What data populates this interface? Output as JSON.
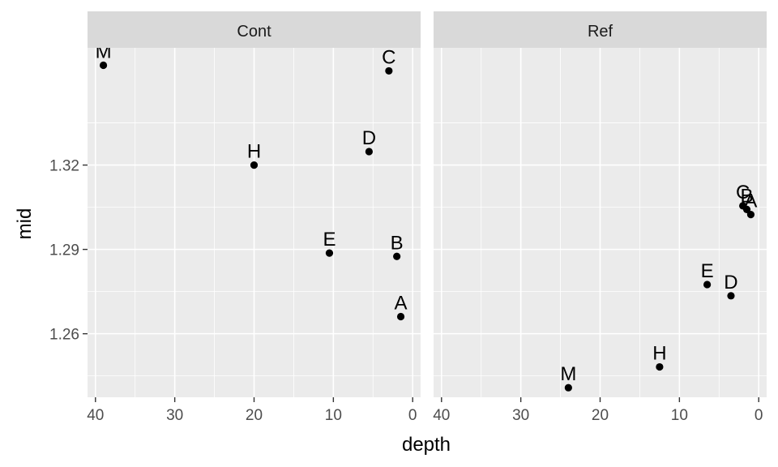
{
  "chart_data": {
    "type": "scatter",
    "xlabel": "depth",
    "ylabel": "mid",
    "x_reversed": true,
    "xlim": [
      41,
      -1
    ],
    "ylim": [
      1.2374,
      1.3617
    ],
    "x_ticks": [
      40,
      30,
      20,
      10,
      0
    ],
    "x_tick_labels": [
      "40",
      "30",
      "20",
      "10",
      "0"
    ],
    "y_ticks": [
      1.26,
      1.29,
      1.32
    ],
    "y_tick_labels": [
      "1.26",
      "1.29",
      "1.32"
    ],
    "grid": true,
    "colors": {
      "panel_bg": "#ebebeb",
      "strip_bg": "#d9d9d9",
      "grid": "#ffffff",
      "point": "#000000"
    },
    "panels": [
      {
        "strip": "Cont",
        "points": [
          {
            "label": "M",
            "x": 39,
            "y": 1.3555
          },
          {
            "label": "C",
            "x": 3,
            "y": 1.3535
          },
          {
            "label": "D",
            "x": 5.5,
            "y": 1.3248
          },
          {
            "label": "H",
            "x": 20,
            "y": 1.32
          },
          {
            "label": "E",
            "x": 10.5,
            "y": 1.2887
          },
          {
            "label": "B",
            "x": 2,
            "y": 1.2875
          },
          {
            "label": "A",
            "x": 1.5,
            "y": 1.2661
          }
        ]
      },
      {
        "strip": "Ref",
        "points": [
          {
            "label": "C",
            "x": 2,
            "y": 1.3055
          },
          {
            "label": "B",
            "x": 1.5,
            "y": 1.3042
          },
          {
            "label": "A",
            "x": 1,
            "y": 1.3024
          },
          {
            "label": "E",
            "x": 6.5,
            "y": 1.2775
          },
          {
            "label": "D",
            "x": 3.5,
            "y": 1.2735
          },
          {
            "label": "H",
            "x": 12.5,
            "y": 1.2482
          },
          {
            "label": "M",
            "x": 24,
            "y": 1.2408
          }
        ]
      }
    ]
  }
}
